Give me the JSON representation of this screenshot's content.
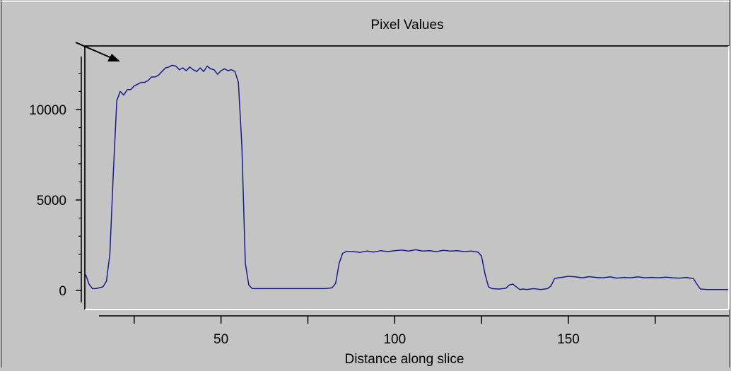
{
  "chart_data": {
    "type": "line",
    "title": "Pixel Values",
    "xlabel": "Distance along slice",
    "ylabel": "",
    "xlim": [
      11,
      196
    ],
    "ylim": [
      0,
      12600
    ],
    "y_ticks": [
      0,
      5000,
      10000
    ],
    "y_tick_labels": [
      "0",
      "5000",
      "10000"
    ],
    "x_ticks": [
      25,
      50,
      75,
      100,
      125,
      150,
      175
    ],
    "x_tick_labels": [
      "",
      "50",
      "",
      "100",
      "",
      "150",
      ""
    ],
    "grid": false,
    "line_color": "#1a1a8c",
    "background_color": "#c4c4c4",
    "series": [
      {
        "x": [
          11,
          12,
          13,
          14,
          16,
          17,
          18,
          19,
          20,
          21,
          22,
          23,
          24,
          25,
          26,
          27,
          28,
          29,
          30,
          31,
          32,
          33,
          34,
          35,
          36,
          37,
          38,
          39,
          40,
          41,
          42,
          43,
          44,
          45,
          46,
          47,
          48,
          49,
          50,
          51,
          52,
          53,
          54,
          55,
          56,
          57,
          58,
          59,
          60,
          62,
          65,
          70,
          75,
          80,
          82,
          83,
          84,
          85,
          86,
          88,
          90,
          92,
          94,
          96,
          98,
          100,
          102,
          104,
          106,
          108,
          110,
          112,
          114,
          116,
          118,
          120,
          122,
          124,
          125,
          126,
          127,
          128,
          130,
          132,
          133,
          134,
          135,
          136,
          137,
          138,
          140,
          142,
          144,
          145,
          146,
          147,
          148,
          150,
          152,
          154,
          156,
          158,
          160,
          162,
          164,
          166,
          168,
          170,
          172,
          174,
          176,
          178,
          180,
          182,
          184,
          186,
          187,
          188,
          190,
          192,
          194,
          196
        ],
        "y": [
          900,
          350,
          100,
          100,
          200,
          500,
          2000,
          6500,
          10500,
          11000,
          10800,
          11100,
          11100,
          11300,
          11400,
          11500,
          11500,
          11600,
          11800,
          11800,
          11900,
          12100,
          12300,
          12350,
          12450,
          12400,
          12200,
          12300,
          12150,
          12350,
          12200,
          12100,
          12300,
          12100,
          12400,
          12250,
          12200,
          11950,
          12150,
          12250,
          12150,
          12200,
          12100,
          11500,
          8000,
          1500,
          300,
          100,
          100,
          100,
          100,
          100,
          100,
          100,
          150,
          400,
          1500,
          2050,
          2150,
          2150,
          2100,
          2180,
          2120,
          2200,
          2150,
          2200,
          2230,
          2180,
          2250,
          2180,
          2200,
          2150,
          2220,
          2180,
          2200,
          2150,
          2180,
          2120,
          1900,
          900,
          200,
          100,
          80,
          120,
          300,
          350,
          200,
          50,
          80,
          50,
          100,
          50,
          100,
          250,
          650,
          700,
          720,
          780,
          750,
          700,
          760,
          720,
          700,
          750,
          680,
          720,
          700,
          750,
          700,
          720,
          700,
          730,
          700,
          680,
          720,
          650,
          350,
          80,
          50,
          50,
          50,
          50
        ]
      }
    ]
  }
}
